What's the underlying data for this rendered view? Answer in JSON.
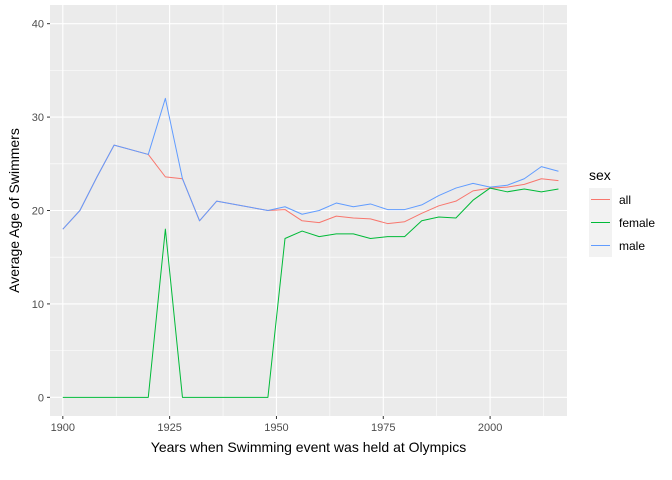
{
  "chart_data": {
    "type": "line",
    "title": "",
    "xlabel": "Years when Swimming event was held at Olympics",
    "ylabel": "Average Age of Swimmers",
    "xlim": [
      1897,
      2018
    ],
    "ylim": [
      -2,
      42
    ],
    "x_ticks": [
      1900,
      1925,
      1950,
      1975,
      2000
    ],
    "y_ticks": [
      0,
      10,
      20,
      30,
      40
    ],
    "grid": true,
    "legend": {
      "title": "sex",
      "position": "right"
    },
    "series": [
      {
        "name": "all",
        "color": "#F8766D",
        "points": [
          [
            1900,
            18.0
          ],
          [
            1904,
            20.0
          ],
          [
            1908,
            23.6
          ],
          [
            1912,
            27.0
          ],
          [
            1920,
            26.0
          ],
          [
            1924,
            23.6
          ],
          [
            1928,
            23.4
          ],
          [
            1932,
            18.9
          ],
          [
            1936,
            21.0
          ],
          [
            1948,
            20.0
          ],
          [
            1952,
            20.1
          ],
          [
            1956,
            18.9
          ],
          [
            1960,
            18.7
          ],
          [
            1964,
            19.4
          ],
          [
            1968,
            19.2
          ],
          [
            1972,
            19.1
          ],
          [
            1976,
            18.6
          ],
          [
            1980,
            18.8
          ],
          [
            1984,
            19.7
          ],
          [
            1988,
            20.5
          ],
          [
            1992,
            21.0
          ],
          [
            1996,
            22.1
          ],
          [
            2000,
            22.4
          ],
          [
            2004,
            22.5
          ],
          [
            2008,
            22.8
          ],
          [
            2012,
            23.4
          ],
          [
            2016,
            23.2
          ]
        ]
      },
      {
        "name": "female",
        "color": "#00BA38",
        "points": [
          [
            1900,
            0
          ],
          [
            1904,
            0
          ],
          [
            1908,
            0
          ],
          [
            1912,
            0
          ],
          [
            1920,
            0
          ],
          [
            1924,
            18.0
          ],
          [
            1928,
            0
          ],
          [
            1932,
            0
          ],
          [
            1936,
            0
          ],
          [
            1948,
            0
          ],
          [
            1952,
            17.0
          ],
          [
            1956,
            17.8
          ],
          [
            1960,
            17.2
          ],
          [
            1964,
            17.5
          ],
          [
            1968,
            17.5
          ],
          [
            1972,
            17.0
          ],
          [
            1976,
            17.2
          ],
          [
            1980,
            17.2
          ],
          [
            1984,
            18.9
          ],
          [
            1988,
            19.3
          ],
          [
            1992,
            19.2
          ],
          [
            1996,
            21.1
          ],
          [
            2000,
            22.4
          ],
          [
            2004,
            22.0
          ],
          [
            2008,
            22.3
          ],
          [
            2012,
            22.0
          ],
          [
            2016,
            22.3
          ]
        ]
      },
      {
        "name": "male",
        "color": "#619CFF",
        "points": [
          [
            1900,
            18.0
          ],
          [
            1904,
            20.0
          ],
          [
            1908,
            23.6
          ],
          [
            1912,
            27.0
          ],
          [
            1920,
            26.0
          ],
          [
            1924,
            32.0
          ],
          [
            1928,
            23.4
          ],
          [
            1932,
            18.9
          ],
          [
            1936,
            21.0
          ],
          [
            1948,
            20.0
          ],
          [
            1952,
            20.4
          ],
          [
            1956,
            19.6
          ],
          [
            1960,
            20.0
          ],
          [
            1964,
            20.8
          ],
          [
            1968,
            20.4
          ],
          [
            1972,
            20.7
          ],
          [
            1976,
            20.1
          ],
          [
            1980,
            20.1
          ],
          [
            1984,
            20.6
          ],
          [
            1988,
            21.6
          ],
          [
            1992,
            22.4
          ],
          [
            1996,
            22.9
          ],
          [
            2000,
            22.5
          ],
          [
            2004,
            22.7
          ],
          [
            2008,
            23.4
          ],
          [
            2012,
            24.7
          ],
          [
            2016,
            24.2
          ]
        ]
      }
    ]
  }
}
